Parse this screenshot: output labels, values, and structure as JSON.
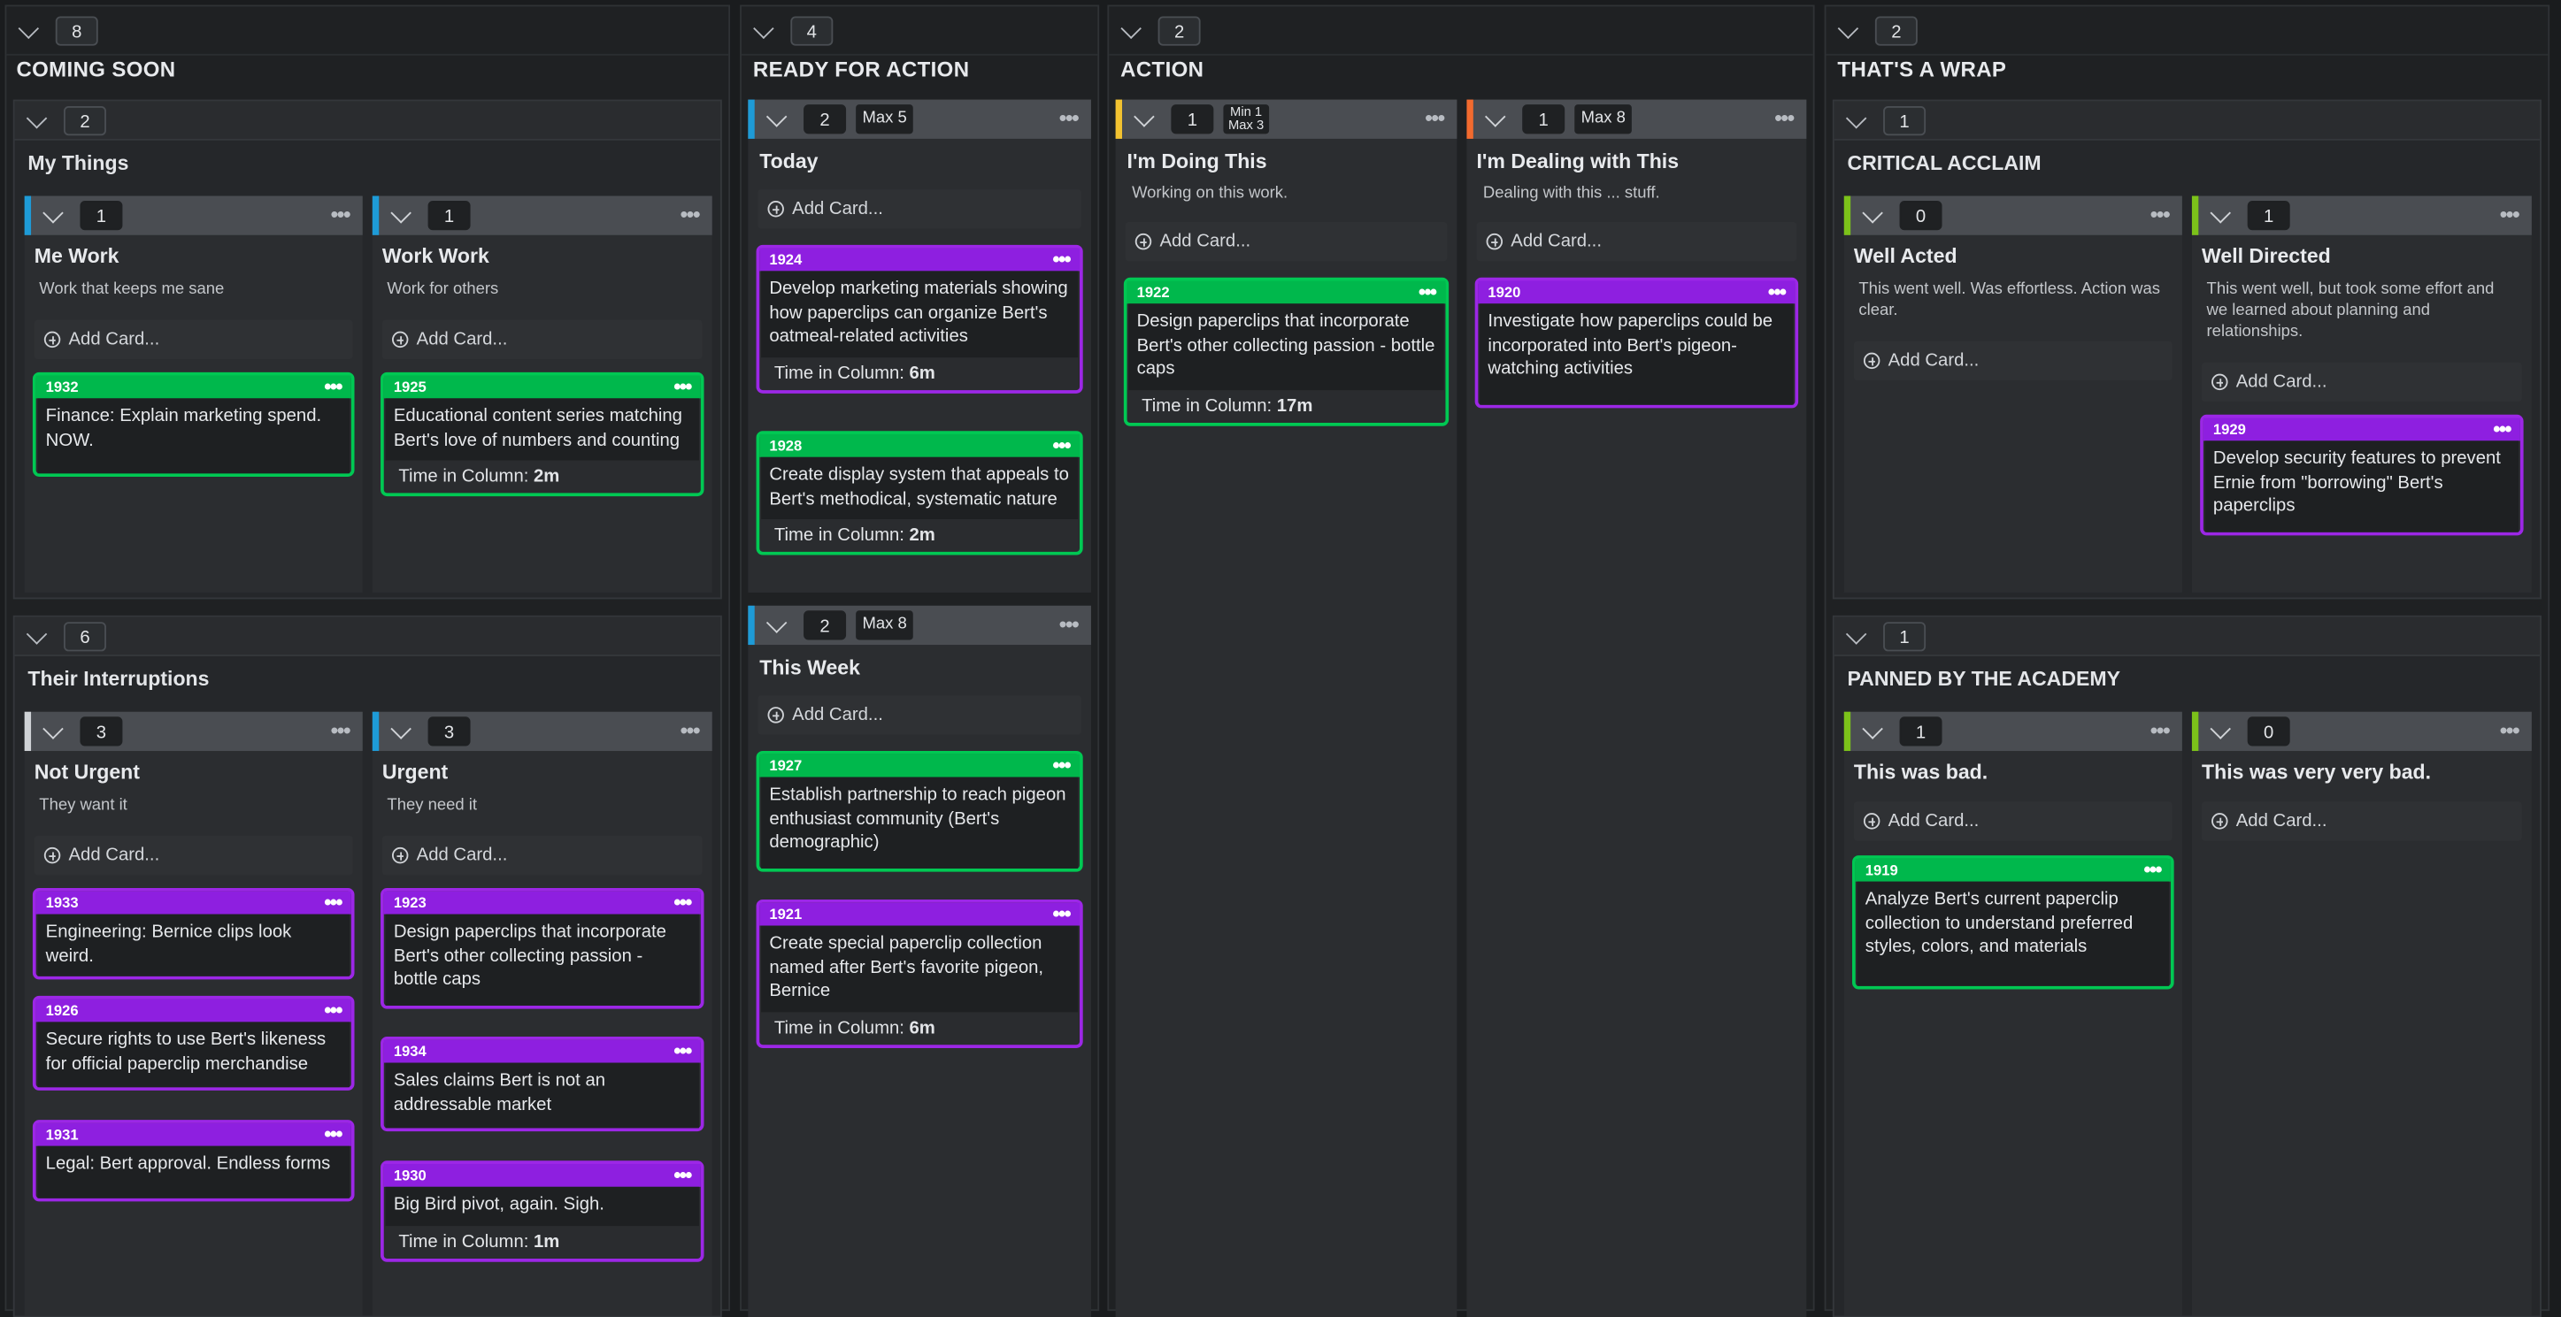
{
  "columns": [
    {
      "count": "8",
      "title": "COMING SOON"
    },
    {
      "count": "4",
      "title": "READY FOR ACTION"
    },
    {
      "count": "2",
      "title": "ACTION"
    },
    {
      "count": "2",
      "title": "THAT'S A WRAP"
    }
  ],
  "groups": {
    "my_things": {
      "count": "2",
      "title": "My Things"
    },
    "their_interruptions": {
      "count": "6",
      "title": "Their Interruptions"
    },
    "critical_acclaim": {
      "count": "1",
      "title": "CRITICAL ACCLAIM"
    },
    "panned": {
      "count": "1",
      "title": "PANNED BY THE ACADEMY"
    }
  },
  "lanes": {
    "me_work": {
      "count": "1",
      "name": "Me Work",
      "desc": "Work that keeps me sane"
    },
    "work_work": {
      "count": "1",
      "name": "Work Work",
      "desc": "Work for others"
    },
    "not_urgent": {
      "count": "3",
      "name": "Not Urgent",
      "desc": "They want it"
    },
    "urgent": {
      "count": "3",
      "name": "Urgent",
      "desc": "They need it"
    },
    "today": {
      "count": "2",
      "limit": "Max 5",
      "name": "Today"
    },
    "this_week": {
      "count": "2",
      "limit": "Max 8",
      "name": "This Week"
    },
    "doing": {
      "count": "1",
      "limit_min": "Min 1",
      "limit_max": "Max 3",
      "name": "I'm Doing This",
      "desc": "Working on this work."
    },
    "dealing": {
      "count": "1",
      "limit": "Max 8",
      "name": "I'm Dealing with This",
      "desc": "Dealing with this ... stuff."
    },
    "well_acted": {
      "count": "0",
      "name": "Well Acted",
      "desc": "This went well. Was effortless. Action was clear."
    },
    "well_directed": {
      "count": "1",
      "name": "Well Directed",
      "desc": "This went well, but took some effort and we learned about planning and relationships."
    },
    "bad": {
      "count": "1",
      "name": "This was bad."
    },
    "very_bad": {
      "count": "0",
      "name": "This was very very bad."
    }
  },
  "add_card_label": "Add Card...",
  "time_label": "Time in Column:",
  "cards": {
    "c1932": {
      "id": "1932",
      "text": "Finance: Explain marketing spend. NOW."
    },
    "c1925": {
      "id": "1925",
      "text": "Educational content series matching Bert's love of numbers and counting",
      "time": "2m"
    },
    "c1933": {
      "id": "1933",
      "text": "Engineering: Bernice clips look weird."
    },
    "c1926": {
      "id": "1926",
      "text": "Secure rights to use Bert's likeness for official paperclip merchandise"
    },
    "c1931": {
      "id": "1931",
      "text": "Legal: Bert approval. Endless forms"
    },
    "c1923": {
      "id": "1923",
      "text": "Design paperclips that incorporate Bert's other collecting passion - bottle caps"
    },
    "c1934": {
      "id": "1934",
      "text": "Sales claims Bert is not an addressable market"
    },
    "c1930": {
      "id": "1930",
      "text": "Big Bird pivot, again. Sigh.",
      "time": "1m"
    },
    "c1924": {
      "id": "1924",
      "text": "Develop marketing materials showing how paperclips can organize Bert's oatmeal-related activities",
      "time": "6m"
    },
    "c1928": {
      "id": "1928",
      "text": "Create display system that appeals to Bert's methodical, systematic nature",
      "time": "2m"
    },
    "c1927": {
      "id": "1927",
      "text": "Establish partnership to reach pigeon enthusiast community (Bert's demographic)"
    },
    "c1921": {
      "id": "1921",
      "text": "Create special paperclip collection named after Bert's favorite pigeon, Bernice",
      "time": "6m"
    },
    "c1922": {
      "id": "1922",
      "text": "Design paperclips that incorporate Bert's other collecting passion - bottle caps",
      "time": "17m"
    },
    "c1920": {
      "id": "1920",
      "text": "Investigate how paperclips could be incorporated into Bert's pigeon-watching activities"
    },
    "c1929": {
      "id": "1929",
      "text": "Develop security features to prevent Ernie from \"borrowing\" Bert's paperclips"
    },
    "c1919": {
      "id": "1919",
      "text": "Analyze Bert's current paperclip collection to understand preferred styles, colors, and materials"
    }
  },
  "colors": {
    "green": "#00c853",
    "purple": "#9c27e6",
    "blue": "#1e9bd7",
    "yellow": "#f2c230",
    "orange": "#f26a2e",
    "lime": "#7cc21a",
    "gray": "#cfd2d6"
  }
}
